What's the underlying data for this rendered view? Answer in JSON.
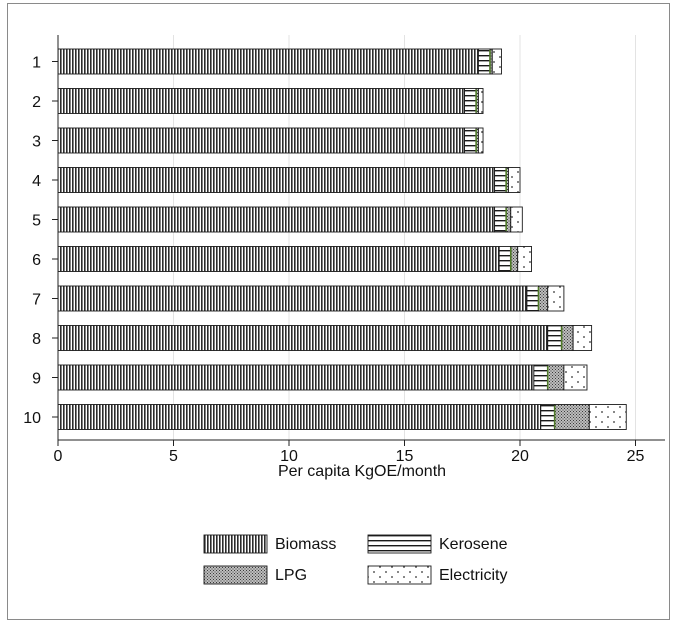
{
  "chart_data": {
    "type": "bar",
    "orientation": "horizontal",
    "stacked": true,
    "categories": [
      "1",
      "2",
      "3",
      "4",
      "5",
      "6",
      "7",
      "8",
      "9",
      "10"
    ],
    "xlabel": "Per capita KgOE/month",
    "xlim": [
      0,
      26
    ],
    "xticks": [
      0,
      5,
      10,
      15,
      20,
      25
    ],
    "grid": true,
    "legend_position": "bottom",
    "series": [
      {
        "name": "Biomass",
        "pattern": "vertical-lines",
        "values": [
          18.2,
          17.6,
          17.6,
          18.9,
          18.9,
          19.1,
          20.3,
          21.2,
          20.6,
          20.9
        ]
      },
      {
        "name": "Kerosene",
        "pattern": "horizontal-lines",
        "values": [
          0.5,
          0.5,
          0.5,
          0.5,
          0.5,
          0.5,
          0.5,
          0.6,
          0.6,
          0.6
        ]
      },
      {
        "name": "LPG",
        "pattern": "crosshatch",
        "values": [
          0.1,
          0.1,
          0.1,
          0.1,
          0.2,
          0.3,
          0.4,
          0.5,
          0.7,
          1.5
        ]
      },
      {
        "name": "Electricity",
        "pattern": "dots",
        "values": [
          0.4,
          0.2,
          0.2,
          0.5,
          0.5,
          0.6,
          0.7,
          0.8,
          1.0,
          1.6
        ]
      }
    ],
    "accent_color": "#4f7a28"
  }
}
